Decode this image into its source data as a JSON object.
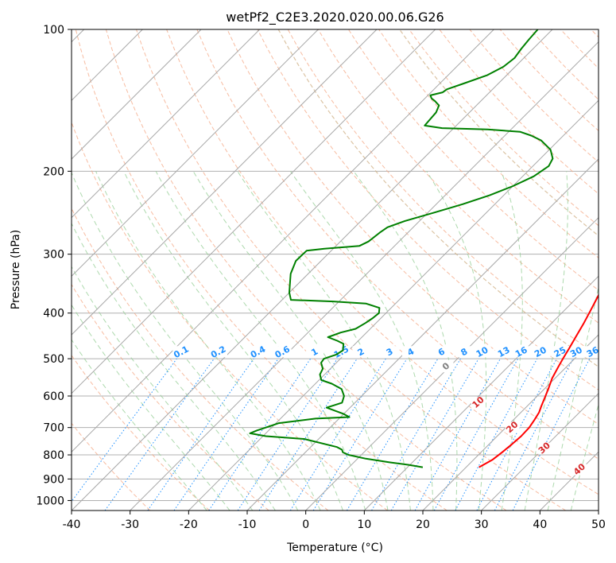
{
  "chart_data": {
    "type": "line",
    "subtype": "skew-T log-P diagram",
    "title": "wetPf2_C2E3.2020.020.00.06.G26",
    "xlabel": "Temperature (°C)",
    "ylabel": "Pressure (hPa)",
    "xlim": [
      -40,
      50
    ],
    "ylim": [
      1050,
      100
    ],
    "y_scale": "log",
    "x_ticks": [
      -40,
      -30,
      -20,
      -10,
      0,
      10,
      20,
      30,
      40,
      50
    ],
    "y_ticks": [
      100,
      200,
      300,
      400,
      500,
      600,
      700,
      800,
      900,
      1000
    ],
    "grid": true,
    "series": [
      {
        "role": "temperature",
        "color": "#ff0000",
        "points": [
          [
            850,
            22.2
          ],
          [
            820,
            23.2
          ],
          [
            790,
            23.6
          ],
          [
            760,
            23.9
          ],
          [
            730,
            24.1
          ],
          [
            700,
            24.0
          ],
          [
            675,
            23.6
          ],
          [
            650,
            23.1
          ],
          [
            630,
            22.4
          ],
          [
            600,
            21.4
          ],
          [
            575,
            20.5
          ],
          [
            550,
            19.5
          ],
          [
            520,
            18.6
          ],
          [
            500,
            18.0
          ],
          [
            475,
            17.3
          ],
          [
            450,
            16.5
          ],
          [
            420,
            15.5
          ],
          [
            400,
            14.7
          ],
          [
            370,
            13.4
          ],
          [
            350,
            12.5
          ],
          [
            330,
            11.5
          ],
          [
            300,
            10.3
          ],
          [
            280,
            9.5
          ],
          [
            260,
            8.6
          ],
          [
            245,
            7.7
          ],
          [
            230,
            6.8
          ],
          [
            215,
            5.7
          ],
          [
            200,
            4.6
          ],
          [
            190,
            3.7
          ],
          [
            180,
            2.8
          ],
          [
            170,
            2.1
          ],
          [
            160,
            1.5
          ],
          [
            150,
            0.8
          ],
          [
            140,
            0.0
          ],
          [
            130,
            -0.9
          ],
          [
            120,
            -2.0
          ],
          [
            110,
            -3.6
          ],
          [
            100,
            -5.0
          ]
        ]
      },
      {
        "role": "dewpoint",
        "color": "#008000",
        "points": [
          [
            850,
            12.6
          ],
          [
            840,
            9.8
          ],
          [
            830,
            6.2
          ],
          [
            815,
            1.4
          ],
          [
            800,
            -2.2
          ],
          [
            790,
            -3.6
          ],
          [
            780,
            -4.2
          ],
          [
            770,
            -5.5
          ],
          [
            740,
            -12.5
          ],
          [
            730,
            -19.5
          ],
          [
            720,
            -22.7
          ],
          [
            710,
            -22.0
          ],
          [
            700,
            -21.0
          ],
          [
            685,
            -19.5
          ],
          [
            670,
            -14.0
          ],
          [
            665,
            -8.5
          ],
          [
            655,
            -10.0
          ],
          [
            645,
            -12.0
          ],
          [
            635,
            -14.0
          ],
          [
            630,
            -13.4
          ],
          [
            620,
            -12.2
          ],
          [
            610,
            -12.6
          ],
          [
            600,
            -13.0
          ],
          [
            580,
            -14.6
          ],
          [
            565,
            -17.2
          ],
          [
            555,
            -19.6
          ],
          [
            540,
            -20.8
          ],
          [
            525,
            -21.3
          ],
          [
            510,
            -22.6
          ],
          [
            500,
            -22.8
          ],
          [
            490,
            -21.4
          ],
          [
            480,
            -21.0
          ],
          [
            465,
            -22.0
          ],
          [
            458,
            -23.6
          ],
          [
            450,
            -25.8
          ],
          [
            440,
            -24.4
          ],
          [
            432,
            -22.5
          ],
          [
            420,
            -21.8
          ],
          [
            410,
            -21.4
          ],
          [
            400,
            -21.2
          ],
          [
            390,
            -22.0
          ],
          [
            382,
            -25.0
          ],
          [
            378,
            -31.0
          ],
          [
            375,
            -38.5
          ],
          [
            362,
            -40.0
          ],
          [
            350,
            -41.1
          ],
          [
            330,
            -43.0
          ],
          [
            310,
            -44.3
          ],
          [
            295,
            -44.2
          ],
          [
            292,
            -41.5
          ],
          [
            288,
            -36.0
          ],
          [
            282,
            -35.2
          ],
          [
            270,
            -34.8
          ],
          [
            263,
            -34.4
          ],
          [
            255,
            -32.5
          ],
          [
            245,
            -29.0
          ],
          [
            235,
            -25.5
          ],
          [
            225,
            -22.4
          ],
          [
            215,
            -20.0
          ],
          [
            205,
            -18.1
          ],
          [
            195,
            -17.3
          ],
          [
            188,
            -17.9
          ],
          [
            180,
            -19.8
          ],
          [
            172,
            -23.0
          ],
          [
            168,
            -25.5
          ],
          [
            165,
            -28.0
          ],
          [
            163,
            -34.0
          ],
          [
            162,
            -42.0
          ],
          [
            160,
            -45.4
          ],
          [
            150,
            -45.7
          ],
          [
            145,
            -46.4
          ],
          [
            142,
            -47.8
          ],
          [
            140,
            -48.9
          ],
          [
            138,
            -49.6
          ],
          [
            136,
            -48.0
          ],
          [
            134,
            -47.8
          ],
          [
            130,
            -45.8
          ],
          [
            125,
            -43.3
          ],
          [
            120,
            -42.0
          ],
          [
            115,
            -41.6
          ],
          [
            110,
            -42.0
          ],
          [
            105,
            -42.3
          ],
          [
            100,
            -42.5
          ]
        ]
      }
    ],
    "dry_adiabat_labels": [
      "-100",
      "-90",
      "-80",
      "-70",
      "-60",
      "-50",
      "-40",
      "-30",
      "-20",
      "-10"
    ],
    "moist_adiabat_labels": [
      "0",
      "10",
      "20",
      "30",
      "40"
    ],
    "mixing_ratio_labels": [
      "0.1",
      "0.2",
      "0.4",
      "0.6",
      "1",
      "1.5",
      "2",
      "3",
      "4",
      "6",
      "8",
      "10",
      "13",
      "16",
      "20",
      "25",
      "30",
      "36"
    ]
  }
}
